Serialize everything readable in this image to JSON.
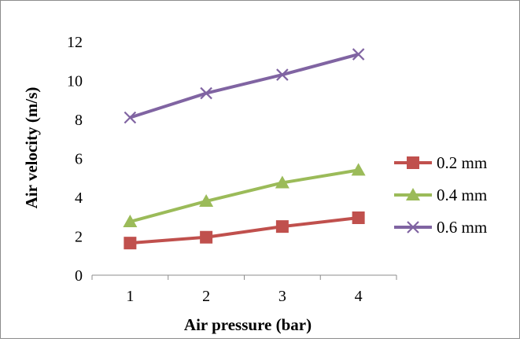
{
  "chart_data": {
    "type": "line",
    "title": "",
    "xlabel": "Air pressure (bar)",
    "ylabel": "Air velocity (m/s)",
    "categories": [
      "1",
      "2",
      "3",
      "4"
    ],
    "x": [
      1,
      2,
      3,
      4
    ],
    "ylim": [
      0,
      12
    ],
    "yticks": [
      0,
      2,
      4,
      6,
      8,
      10,
      12
    ],
    "grid": false,
    "legend_position": "right",
    "series": [
      {
        "name": "0.2 mm",
        "values": [
          1.65,
          1.95,
          2.5,
          2.95
        ],
        "color": "#c0504d",
        "marker": "square"
      },
      {
        "name": "0.4 mm",
        "values": [
          2.75,
          3.8,
          4.75,
          5.4
        ],
        "color": "#9bbb59",
        "marker": "triangle"
      },
      {
        "name": "0.6 mm",
        "values": [
          8.1,
          9.35,
          10.3,
          11.35
        ],
        "color": "#8064a2",
        "marker": "x"
      }
    ]
  }
}
